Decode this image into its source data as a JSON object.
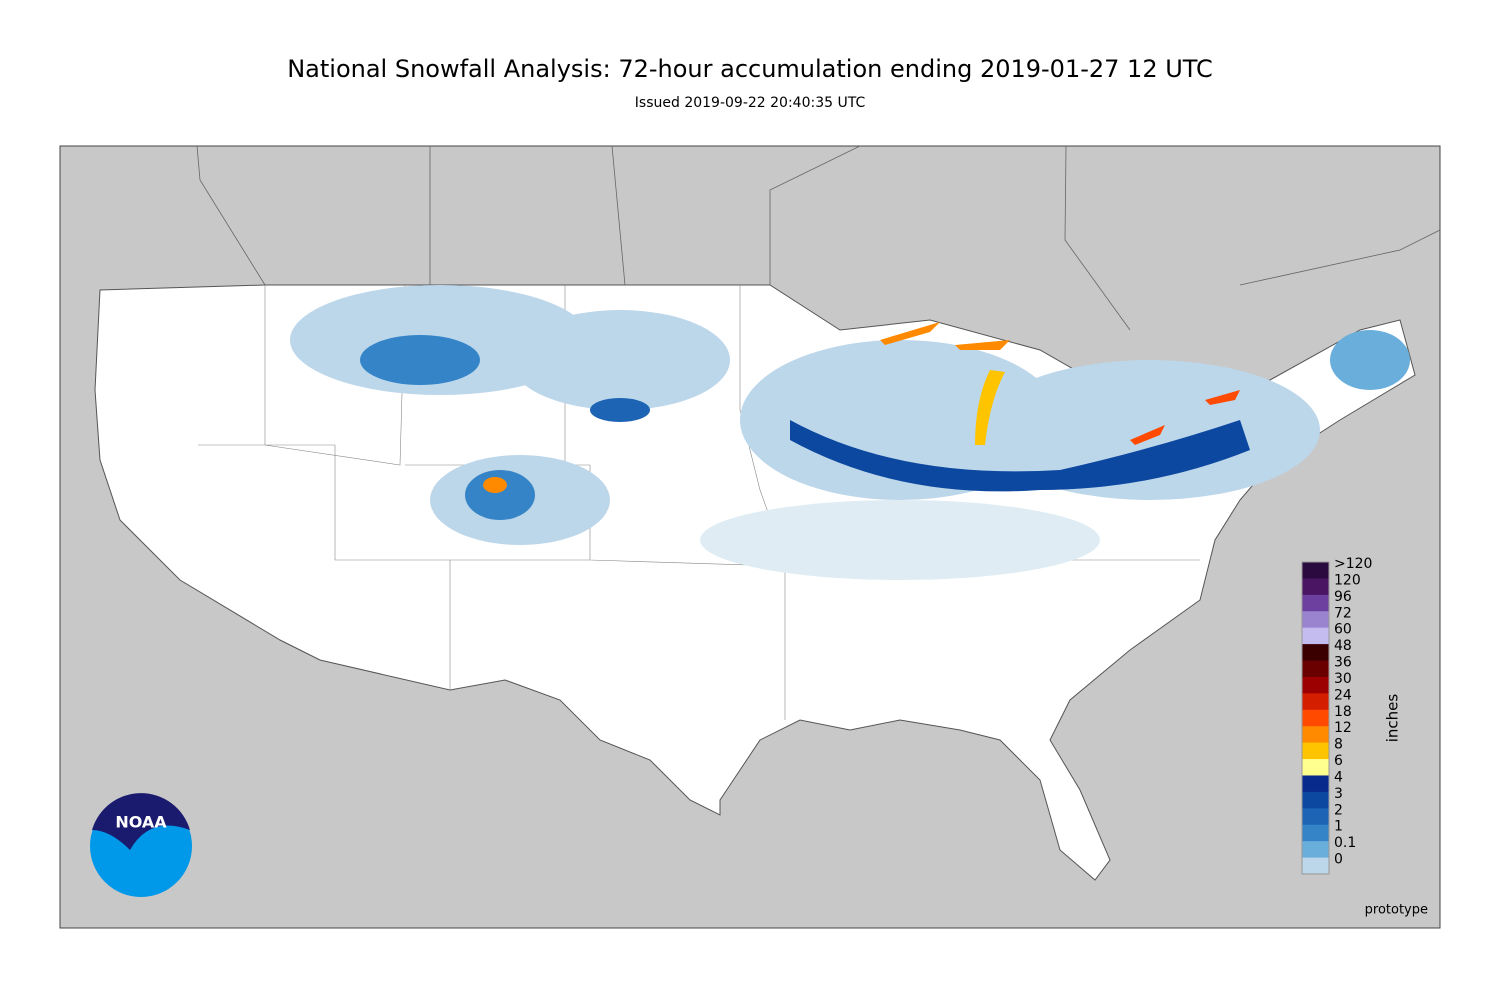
{
  "header": {
    "title": "National Snowfall Analysis: 72-hour accumulation ending 2019-01-27 12 UTC",
    "subtitle": "Issued 2019-09-22 20:40:35 UTC"
  },
  "legend": {
    "unit": "inches",
    "items": [
      {
        "label": ">120",
        "color": "#2b0b3f"
      },
      {
        "label": "120",
        "color": "#4a1562"
      },
      {
        "label": "96",
        "color": "#6d3f9e"
      },
      {
        "label": "72",
        "color": "#9a84d0"
      },
      {
        "label": "60",
        "color": "#c4bcef"
      },
      {
        "label": "48",
        "color": "#3a0000"
      },
      {
        "label": "36",
        "color": "#6a0000"
      },
      {
        "label": "30",
        "color": "#9c0000"
      },
      {
        "label": "24",
        "color": "#d41e00"
      },
      {
        "label": "18",
        "color": "#ff4a00"
      },
      {
        "label": "12",
        "color": "#ff8a00"
      },
      {
        "label": "8",
        "color": "#ffc400"
      },
      {
        "label": "6",
        "color": "#ffff90"
      },
      {
        "label": "4",
        "color": "#082a8c"
      },
      {
        "label": "3",
        "color": "#0c47a0"
      },
      {
        "label": "2",
        "color": "#1d65b4"
      },
      {
        "label": "1",
        "color": "#3584c8"
      },
      {
        "label": "0.1",
        "color": "#6aaedb"
      },
      {
        "label": "0",
        "color": "#bcd6ea"
      }
    ]
  },
  "footer": {
    "note": "prototype",
    "logo": "NOAA"
  }
}
